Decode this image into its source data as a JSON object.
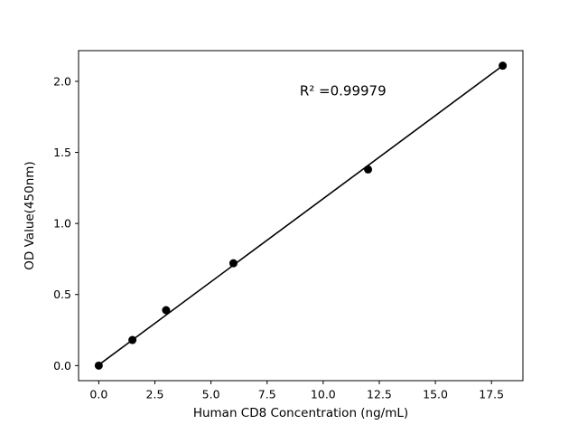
{
  "chart_data": {
    "type": "scatter",
    "title": "",
    "xlabel": "Human CD8 Concentration (ng/mL)",
    "ylabel": "OD Value(450nm)",
    "annotation": "R² =0.99979",
    "x": [
      0,
      1.5,
      3,
      6,
      12,
      18
    ],
    "y": [
      0.0,
      0.18,
      0.39,
      0.72,
      1.38,
      2.11
    ],
    "fit_line": {
      "x": [
        0,
        18
      ],
      "y": [
        0.005,
        2.11
      ]
    },
    "xticks": [
      0.0,
      2.5,
      5.0,
      7.5,
      10.0,
      12.5,
      15.0,
      17.5
    ],
    "yticks": [
      0.0,
      0.5,
      1.0,
      1.5,
      2.0
    ],
    "xlim": [
      -0.9,
      18.9
    ],
    "ylim": [
      -0.106,
      2.216
    ],
    "grid": false,
    "legend": "none",
    "marker_color": "#000000",
    "line_color": "#000000",
    "background_color": "#ffffff"
  }
}
